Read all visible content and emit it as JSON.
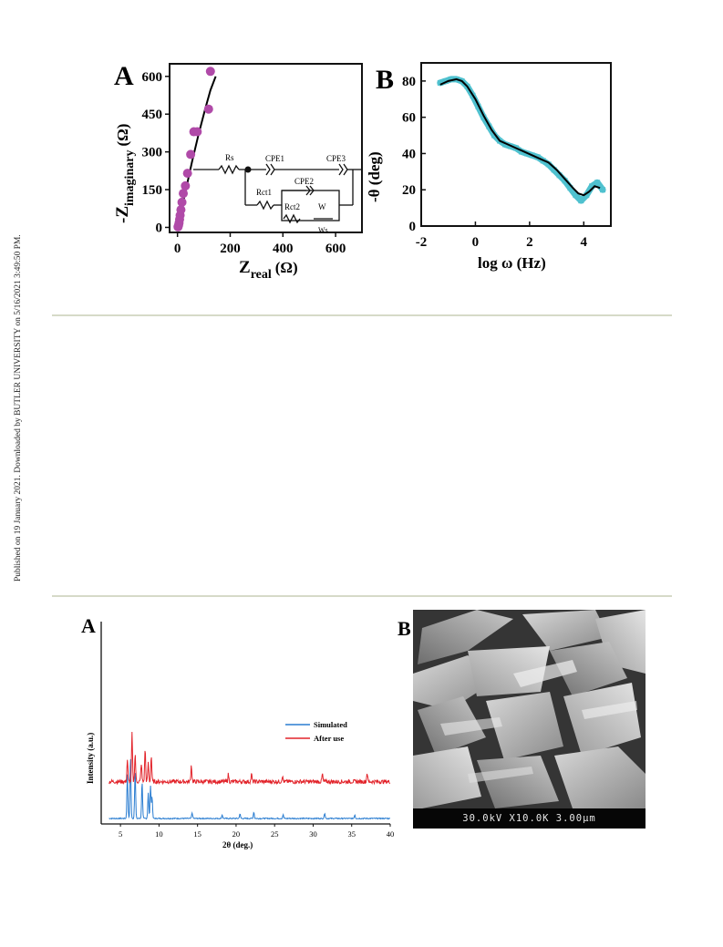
{
  "side_note": "Published on 19 January 2021. Downloaded by BUTLER UNIVERSITY on 5/16/2021 3:49:50 PM.",
  "figure_top": {
    "panel_a": {
      "letter": "A",
      "xlabel_main": "Z",
      "xlabel_sub": "real",
      "xlabel_unit": "(Ω)",
      "ylabel_main": "-Z",
      "ylabel_sub": "imaginary",
      "ylabel_unit": "(Ω)",
      "circuit": {
        "rs": "Rs",
        "cpe1": "CPE1",
        "cpe3": "CPE3",
        "rct1": "Rct1",
        "cpe2": "CPE2",
        "rct2": "Rct2",
        "w": "W",
        "ws": "Ws"
      }
    },
    "panel_b": {
      "letter": "B",
      "xlabel": "log ω (Hz)",
      "ylabel": "-θ (deg)"
    }
  },
  "figure_bottom": {
    "panel_a": {
      "letter": "A",
      "xlabel": "2θ (deg.)",
      "ylabel": "Intensity (a.u.)"
    },
    "panel_b": {
      "letter": "B",
      "scale_bar": "30.0kV  X10.0K  3.00μm"
    }
  },
  "chart_data": [
    {
      "type": "scatter",
      "title": "A",
      "xlabel": "Zreal (Ω)",
      "ylabel": "-Zimaginary (Ω)",
      "xlim": [
        -30,
        700
      ],
      "ylim": [
        -20,
        650
      ],
      "xticks": [
        0,
        200,
        400,
        600
      ],
      "yticks": [
        0,
        150,
        300,
        450,
        600
      ],
      "series": [
        {
          "kind": "points",
          "color": "#b04aa8",
          "x": [
            2,
            4,
            6,
            8,
            10,
            13,
            17,
            22,
            30,
            38,
            50,
            62,
            75,
            118,
            125
          ],
          "y": [
            2,
            8,
            18,
            32,
            48,
            70,
            100,
            135,
            165,
            215,
            290,
            380,
            380,
            470,
            620
          ]
        },
        {
          "kind": "fit",
          "color": "#000000",
          "x": [
            0,
            5,
            10,
            20,
            35,
            55,
            80,
            105,
            125,
            145
          ],
          "y": [
            0,
            20,
            45,
            95,
            165,
            260,
            370,
            470,
            545,
            600
          ]
        }
      ]
    },
    {
      "type": "line",
      "title": "B",
      "xlabel": "log ω (Hz)",
      "ylabel": "-θ (deg)",
      "xlim": [
        -2,
        5
      ],
      "ylim": [
        0,
        90
      ],
      "xticks": [
        -2,
        0,
        2,
        4
      ],
      "yticks": [
        0,
        20,
        40,
        60,
        80
      ],
      "series": [
        {
          "kind": "measured",
          "color": "#4fc1cf",
          "x": [
            -1.3,
            -1.1,
            -0.9,
            -0.7,
            -0.5,
            -0.3,
            -0.1,
            0.1,
            0.3,
            0.5,
            0.7,
            0.9,
            1.1,
            1.3,
            1.5,
            1.7,
            1.9,
            2.1,
            2.3,
            2.5,
            2.7,
            2.9,
            3.1,
            3.3,
            3.5,
            3.7,
            3.9,
            4.1,
            4.3,
            4.5,
            4.7
          ],
          "y": [
            79,
            80,
            81,
            81,
            80,
            77,
            72,
            66,
            60,
            55,
            50,
            47,
            45,
            44,
            43,
            41,
            40,
            39,
            38,
            36,
            34,
            31,
            28,
            25,
            21,
            17,
            14,
            17,
            22,
            24,
            20
          ]
        },
        {
          "kind": "fit",
          "color": "#000000",
          "x": [
            -1.3,
            -1.0,
            -0.7,
            -0.5,
            -0.3,
            0.0,
            0.3,
            0.6,
            0.9,
            1.2,
            1.5,
            1.8,
            2.1,
            2.4,
            2.7,
            3.0,
            3.3,
            3.6,
            3.8,
            4.0,
            4.2,
            4.4,
            4.6
          ],
          "y": [
            78,
            80,
            81,
            80,
            77,
            70,
            61,
            53,
            47,
            45,
            43,
            41,
            39,
            37,
            35,
            31,
            26,
            21,
            18,
            17,
            19,
            22,
            21
          ]
        }
      ]
    },
    {
      "type": "line",
      "title": "A",
      "xlabel": "2θ (deg.)",
      "ylabel": "Intensity (a.u.)",
      "xlim": [
        2.5,
        40
      ],
      "ylim": [
        0,
        100
      ],
      "xticks": [
        5,
        10,
        15,
        20,
        25,
        30,
        35,
        40
      ],
      "legend": "right",
      "series": [
        {
          "name": "Simulated",
          "color": "#2a7dd1",
          "baseline": 2,
          "peaks": [
            [
              5.9,
              24
            ],
            [
              6.3,
              34
            ],
            [
              6.9,
              26
            ],
            [
              7.8,
              20
            ],
            [
              8.6,
              14
            ],
            [
              8.9,
              18
            ],
            [
              9.1,
              12
            ],
            [
              14.3,
              3
            ],
            [
              18.2,
              2
            ],
            [
              20.5,
              2.5
            ],
            [
              22.3,
              3.5
            ],
            [
              26.1,
              2
            ],
            [
              31.5,
              3
            ],
            [
              35.4,
              2
            ]
          ]
        },
        {
          "name": "After use",
          "color": "#e2232a",
          "baseline": 22,
          "peaks": [
            [
              5.9,
              12
            ],
            [
              6.5,
              26
            ],
            [
              6.9,
              15
            ],
            [
              7.7,
              10
            ],
            [
              8.2,
              18
            ],
            [
              8.6,
              10
            ],
            [
              9.0,
              14
            ],
            [
              14.2,
              9
            ],
            [
              19.0,
              4
            ],
            [
              22.0,
              4
            ],
            [
              26.0,
              3
            ],
            [
              31.2,
              4
            ],
            [
              37.0,
              5
            ]
          ]
        }
      ]
    }
  ]
}
